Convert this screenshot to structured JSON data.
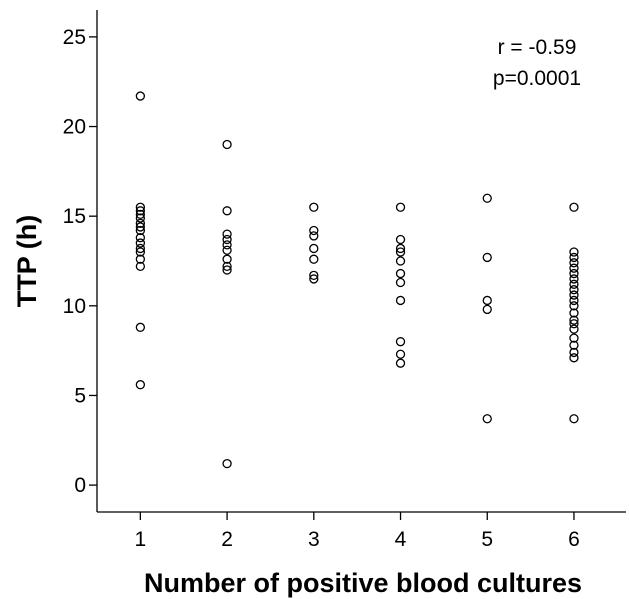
{
  "chart_data": {
    "type": "scatter",
    "title": "",
    "xlabel": "Number of positive blood cultures",
    "ylabel": "TTP (h)",
    "xlim": [
      0.5,
      6.6
    ],
    "ylim": [
      -1.5,
      26.5
    ],
    "x_ticks": [
      "1",
      "2",
      "3",
      "4",
      "5",
      "6"
    ],
    "y_ticks": [
      "0",
      "5",
      "10",
      "15",
      "20",
      "25"
    ],
    "grid": false,
    "annotations": [
      "r = -0.59",
      "p=0.0001"
    ],
    "series": [
      {
        "points": [
          [
            1,
            21.7
          ],
          [
            1,
            15.5
          ],
          [
            1,
            15.3
          ],
          [
            1,
            15.1
          ],
          [
            1,
            14.9
          ],
          [
            1,
            14.6
          ],
          [
            1,
            14.4
          ],
          [
            1,
            14.2
          ],
          [
            1,
            13.8
          ],
          [
            1,
            13.5
          ],
          [
            1,
            13.2
          ],
          [
            1,
            13.0
          ],
          [
            1,
            12.6
          ],
          [
            1,
            12.2
          ],
          [
            1,
            8.8
          ],
          [
            1,
            5.6
          ],
          [
            2,
            19.0
          ],
          [
            2,
            15.3
          ],
          [
            2,
            14.0
          ],
          [
            2,
            13.7
          ],
          [
            2,
            13.4
          ],
          [
            2,
            13.1
          ],
          [
            2,
            12.6
          ],
          [
            2,
            12.2
          ],
          [
            2,
            12.0
          ],
          [
            2,
            1.2
          ],
          [
            3,
            15.5
          ],
          [
            3,
            14.2
          ],
          [
            3,
            13.9
          ],
          [
            3,
            13.2
          ],
          [
            3,
            12.6
          ],
          [
            3,
            11.7
          ],
          [
            3,
            11.5
          ],
          [
            4,
            15.5
          ],
          [
            4,
            13.7
          ],
          [
            4,
            13.2
          ],
          [
            4,
            13.0
          ],
          [
            4,
            12.5
          ],
          [
            4,
            11.8
          ],
          [
            4,
            11.3
          ],
          [
            4,
            10.3
          ],
          [
            4,
            8.0
          ],
          [
            4,
            7.3
          ],
          [
            4,
            6.8
          ],
          [
            5,
            16.0
          ],
          [
            5,
            12.7
          ],
          [
            5,
            10.3
          ],
          [
            5,
            9.8
          ],
          [
            5,
            3.7
          ],
          [
            6,
            15.5
          ],
          [
            6,
            13.0
          ],
          [
            6,
            12.7
          ],
          [
            6,
            12.4
          ],
          [
            6,
            12.1
          ],
          [
            6,
            11.8
          ],
          [
            6,
            11.5
          ],
          [
            6,
            11.2
          ],
          [
            6,
            10.9
          ],
          [
            6,
            10.6
          ],
          [
            6,
            10.3
          ],
          [
            6,
            10.0
          ],
          [
            6,
            9.6
          ],
          [
            6,
            9.2
          ],
          [
            6,
            9.0
          ],
          [
            6,
            8.7
          ],
          [
            6,
            8.2
          ],
          [
            6,
            7.8
          ],
          [
            6,
            7.4
          ],
          [
            6,
            7.1
          ],
          [
            6,
            3.7
          ]
        ]
      }
    ]
  }
}
